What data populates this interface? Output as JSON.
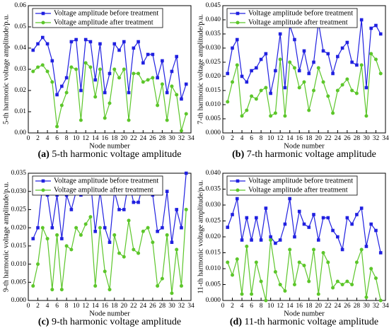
{
  "chart_data": [
    {
      "type": "line",
      "label": "(a)",
      "caption": "5-th harmonic voltage amplitude",
      "xlabel": "Node number",
      "ylabel": "5-th harmonic voltage amplitude/p.u.",
      "x": [
        1,
        2,
        3,
        4,
        5,
        6,
        7,
        8,
        9,
        10,
        11,
        12,
        13,
        14,
        15,
        16,
        17,
        18,
        19,
        20,
        21,
        22,
        23,
        24,
        25,
        26,
        27,
        28,
        29,
        30,
        31,
        32,
        33
      ],
      "xlim": [
        0,
        34
      ],
      "xticks": [
        0,
        2,
        4,
        6,
        8,
        10,
        12,
        14,
        16,
        18,
        20,
        22,
        24,
        26,
        28,
        30,
        32,
        34
      ],
      "ylim": [
        0,
        0.06
      ],
      "yticks": [
        {
          "value": 0,
          "label": "0.00"
        },
        0.01,
        0.02,
        0.03,
        0.04,
        0.05,
        0.06
      ],
      "legend": "upper left",
      "series": [
        {
          "name": "Voltage amplitude before treatment",
          "color": "#2020e0",
          "marker": "square",
          "values": [
            0.039,
            0.042,
            0.045,
            0.042,
            0.034,
            0.018,
            0.022,
            0.026,
            0.043,
            0.044,
            0.02,
            0.044,
            0.043,
            0.025,
            0.042,
            0.019,
            0.028,
            0.042,
            0.039,
            0.043,
            0.019,
            0.04,
            0.043,
            0.033,
            0.037,
            0.037,
            0.026,
            0.034,
            0.019,
            0.029,
            0.036,
            0.016,
            0.023
          ]
        },
        {
          "name": "Voltage amplitude after treatment",
          "color": "#5cc62a",
          "marker": "circle",
          "values": [
            0.029,
            0.031,
            0.032,
            0.029,
            0.024,
            0.003,
            0.013,
            0.019,
            0.031,
            0.03,
            0.006,
            0.033,
            0.031,
            0.017,
            0.03,
            0.007,
            0.014,
            0.03,
            0.026,
            0.03,
            0.006,
            0.028,
            0.028,
            0.024,
            0.025,
            0.026,
            0.013,
            0.023,
            0.006,
            0.022,
            0.018,
            0.001,
            0.009
          ]
        }
      ]
    },
    {
      "type": "line",
      "label": "(b)",
      "caption": "7-th harmonic voltage amplitude",
      "xlabel": "Node number",
      "ylabel": "7-th harmonic voltage amplitude/p.u.",
      "x": [
        1,
        2,
        3,
        4,
        5,
        6,
        7,
        8,
        9,
        10,
        11,
        12,
        13,
        14,
        15,
        16,
        17,
        18,
        19,
        20,
        21,
        22,
        23,
        24,
        25,
        26,
        27,
        28,
        29,
        30,
        31,
        32,
        33
      ],
      "xlim": [
        0,
        34
      ],
      "xticks": [
        0,
        2,
        4,
        6,
        8,
        10,
        12,
        14,
        16,
        18,
        20,
        22,
        24,
        26,
        28,
        30,
        32,
        34
      ],
      "ylim": [
        0,
        0.045
      ],
      "yticks": [
        {
          "value": 0,
          "label": "0.000"
        },
        0.005,
        {
          "value": 0.01,
          "label": "0.010"
        },
        0.015,
        {
          "value": 0.02,
          "label": "0.020"
        },
        0.025,
        {
          "value": 0.03,
          "label": "0.030"
        },
        0.035,
        {
          "value": 0.04,
          "label": "0.040"
        },
        0.045
      ],
      "legend": "upper left",
      "series": [
        {
          "name": "Voltage amplitude before treatment",
          "color": "#2020e0",
          "marker": "square",
          "values": [
            0.021,
            0.03,
            0.033,
            0.02,
            0.018,
            0.022,
            0.023,
            0.026,
            0.028,
            0.014,
            0.022,
            0.035,
            0.016,
            0.038,
            0.033,
            0.022,
            0.029,
            0.021,
            0.025,
            0.039,
            0.029,
            0.028,
            0.021,
            0.027,
            0.03,
            0.032,
            0.025,
            0.024,
            0.04,
            0.016,
            0.037,
            0.038,
            0.035
          ]
        },
        {
          "name": "Voltage amplitude after treatment",
          "color": "#5cc62a",
          "marker": "circle",
          "values": [
            0.011,
            0.018,
            0.024,
            0.006,
            0.008,
            0.013,
            0.012,
            0.015,
            0.016,
            0.006,
            0.007,
            0.026,
            0.006,
            0.025,
            0.023,
            0.016,
            0.018,
            0.008,
            0.015,
            0.023,
            0.018,
            0.013,
            0.007,
            0.015,
            0.017,
            0.019,
            0.015,
            0.014,
            0.024,
            0.006,
            0.028,
            0.026,
            0.021
          ]
        }
      ]
    },
    {
      "type": "line",
      "label": "(c)",
      "caption": "9-th harmonic voltage amplitude",
      "xlabel": "Node number",
      "ylabel": "9-th harmonic voltage amplitude/p.u.",
      "x": [
        1,
        2,
        3,
        4,
        5,
        6,
        7,
        8,
        9,
        10,
        11,
        12,
        13,
        14,
        15,
        16,
        17,
        18,
        19,
        20,
        21,
        22,
        23,
        24,
        25,
        26,
        27,
        28,
        29,
        30,
        31,
        32,
        33
      ],
      "xlim": [
        0,
        34
      ],
      "xticks": [
        0,
        2,
        4,
        6,
        8,
        10,
        12,
        14,
        16,
        18,
        20,
        22,
        24,
        26,
        28,
        30,
        32,
        34
      ],
      "ylim": [
        0,
        0.035
      ],
      "yticks": [
        {
          "value": 0,
          "label": "0.000"
        },
        0.005,
        {
          "value": 0.01,
          "label": "0.010"
        },
        0.015,
        {
          "value": 0.02,
          "label": "0.020"
        },
        0.025,
        {
          "value": 0.03,
          "label": "0.030"
        },
        0.035
      ],
      "legend": "upper left",
      "series": [
        {
          "name": "Voltage amplitude before treatment",
          "color": "#2020e0",
          "marker": "square",
          "values": [
            0.017,
            0.02,
            0.032,
            0.029,
            0.02,
            0.029,
            0.017,
            0.029,
            0.025,
            0.03,
            0.029,
            0.033,
            0.033,
            0.019,
            0.03,
            0.02,
            0.016,
            0.03,
            0.025,
            0.025,
            0.033,
            0.027,
            0.027,
            0.032,
            0.031,
            0.029,
            0.019,
            0.02,
            0.03,
            0.016,
            0.025,
            0.02,
            0.035
          ]
        },
        {
          "name": "Voltage amplitude after treatment",
          "color": "#5cc62a",
          "marker": "circle",
          "values": [
            0.004,
            0.01,
            0.02,
            0.017,
            0.003,
            0.018,
            0.003,
            0.015,
            0.014,
            0.02,
            0.018,
            0.021,
            0.023,
            0.004,
            0.02,
            0.008,
            0.003,
            0.018,
            0.013,
            0.012,
            0.022,
            0.014,
            0.013,
            0.019,
            0.02,
            0.016,
            0.004,
            0.006,
            0.018,
            0.002,
            0.014,
            0.004,
            0.025
          ]
        }
      ]
    },
    {
      "type": "line",
      "label": "(d)",
      "caption": "11-th harmonic voltage amplitude",
      "xlabel": "Node number",
      "ylabel": "11-th harmonic voltage amplitude/p.u.",
      "x": [
        1,
        2,
        3,
        4,
        5,
        6,
        7,
        8,
        9,
        10,
        11,
        12,
        13,
        14,
        15,
        16,
        17,
        18,
        19,
        20,
        21,
        22,
        23,
        24,
        25,
        26,
        27,
        28,
        29,
        30,
        31,
        32,
        33
      ],
      "xlim": [
        0,
        34
      ],
      "xticks": [
        0,
        2,
        4,
        6,
        8,
        10,
        12,
        14,
        16,
        18,
        20,
        22,
        24,
        26,
        28,
        30,
        32,
        34
      ],
      "ylim": [
        0,
        0.04
      ],
      "yticks": [
        {
          "value": 0,
          "label": "0.000"
        },
        0.005,
        {
          "value": 0.01,
          "label": "0.010"
        },
        0.015,
        {
          "value": 0.02,
          "label": "0.020"
        },
        0.025,
        {
          "value": 0.03,
          "label": "0.030"
        },
        0.035,
        {
          "value": 0.04,
          "label": "0.040"
        }
      ],
      "legend": "upper left",
      "series": [
        {
          "name": "Voltage amplitude before treatment",
          "color": "#2020e0",
          "marker": "square",
          "values": [
            0.023,
            0.027,
            0.032,
            0.019,
            0.026,
            0.019,
            0.026,
            0.019,
            0.029,
            0.02,
            0.018,
            0.019,
            0.024,
            0.032,
            0.02,
            0.028,
            0.024,
            0.023,
            0.027,
            0.019,
            0.026,
            0.026,
            0.022,
            0.02,
            0.016,
            0.026,
            0.024,
            0.027,
            0.029,
            0.017,
            0.024,
            0.022,
            0.015
          ]
        },
        {
          "name": "Voltage amplitude after treatment",
          "color": "#5cc62a",
          "marker": "circle",
          "values": [
            0.012,
            0.008,
            0.013,
            0.002,
            0.017,
            0.002,
            0.012,
            0.006,
            0.0,
            0.019,
            0.009,
            0.005,
            0.003,
            0.016,
            0.005,
            0.012,
            0.011,
            0.006,
            0.016,
            0.002,
            0.015,
            0.012,
            0.004,
            0.006,
            0.005,
            0.006,
            0.005,
            0.012,
            0.016,
            0.001,
            0.01,
            0.007,
            0.0
          ]
        }
      ]
    }
  ]
}
